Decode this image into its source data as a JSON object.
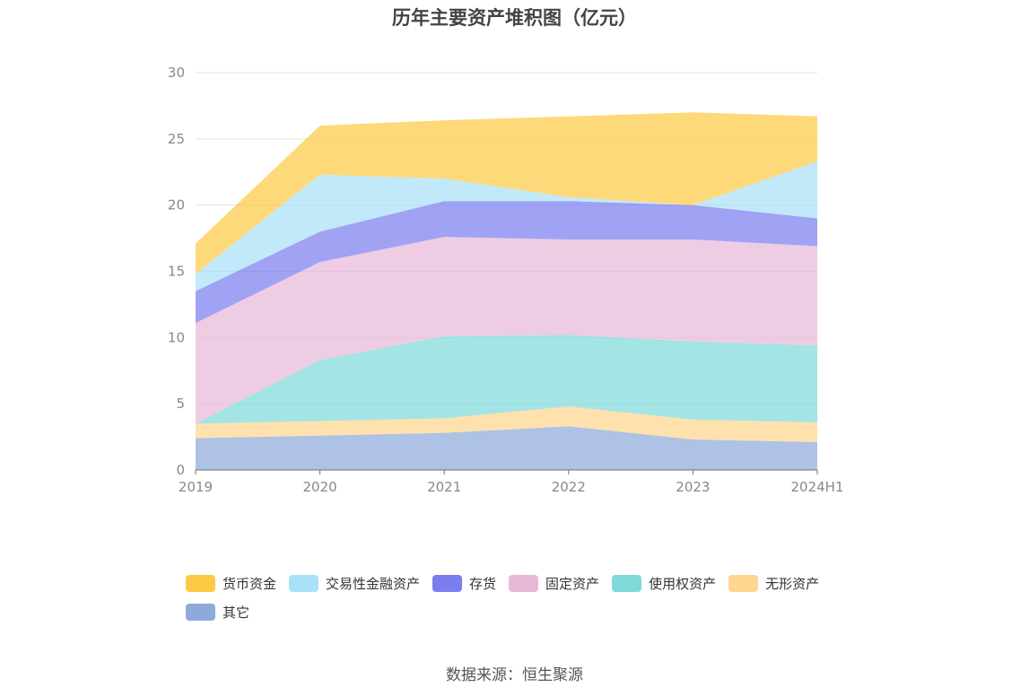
{
  "chart_data": {
    "type": "area",
    "title": "历年主要资产堆积图（亿元）",
    "categories": [
      "2019",
      "2020",
      "2021",
      "2022",
      "2023",
      "2024H1"
    ],
    "ylim": [
      0,
      30
    ],
    "yticks": [
      0,
      5,
      10,
      15,
      20,
      25,
      30
    ],
    "stacked": true,
    "grid": true,
    "legend_position": "bottom",
    "series": [
      {
        "name": "其它",
        "color": "#8eaadb",
        "values": [
          2.4,
          2.6,
          2.8,
          3.3,
          2.3,
          2.1
        ]
      },
      {
        "name": "无形资产",
        "color": "#ffd58f",
        "values": [
          1.1,
          1.1,
          1.1,
          1.5,
          1.5,
          1.5
        ]
      },
      {
        "name": "使用权资产",
        "color": "#7fd9d9",
        "values": [
          0.0,
          4.6,
          6.2,
          5.4,
          5.9,
          5.8
        ]
      },
      {
        "name": "固定资产",
        "color": "#e8b8d8",
        "values": [
          7.6,
          7.4,
          7.5,
          7.2,
          7.7,
          7.5
        ]
      },
      {
        "name": "存货",
        "color": "#7b7ef0",
        "values": [
          2.4,
          2.3,
          2.7,
          2.9,
          2.6,
          2.1
        ]
      },
      {
        "name": "交易性金融资产",
        "color": "#a9e1f8",
        "values": [
          1.3,
          4.3,
          1.7,
          0.3,
          0.0,
          4.3
        ]
      },
      {
        "name": "货币资金",
        "color": "#fdca45",
        "values": [
          2.3,
          3.7,
          4.4,
          6.1,
          7.0,
          3.4
        ]
      }
    ]
  },
  "legend_order": [
    "货币资金",
    "交易性金融资产",
    "存货",
    "固定资产",
    "使用权资产",
    "无形资产",
    "其它"
  ],
  "source": "数据来源：恒生聚源"
}
